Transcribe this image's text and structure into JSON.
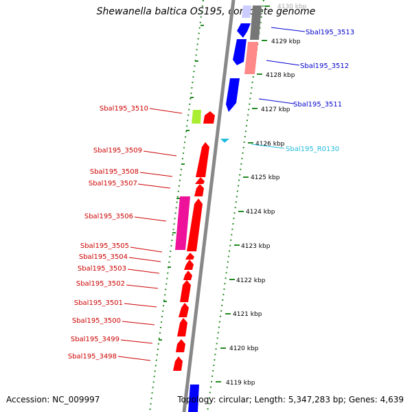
{
  "title": "Shewanella baltica OS195, complete genome",
  "accession": "Accession: NC_009997",
  "topology": "Topology: circular; Length: 5,347,283 bp; Genes: 4,639",
  "colors": {
    "forward_cds": "#ff0000",
    "reverse_cds": "#0000ff",
    "rna": "#22bbdd",
    "pink_gene": "#ee1199",
    "lime_gene": "#aaee33",
    "pseudo_light": "#ccccff",
    "pseudo_salmon": "#ff8888",
    "pseudo_grey": "#777777",
    "backbone": "#888888",
    "ticks": "#228822"
  },
  "kbp_ticks": [
    "4130 kbp",
    "4129 kbp",
    "4128 kbp",
    "4127 kbp",
    "4126 kbp",
    "4125 kbp",
    "4124 kbp",
    "4123 kbp",
    "4122 kbp",
    "4121 kbp",
    "4120 kbp",
    "4119 kbp"
  ],
  "labels": {
    "sbal3513": "Sbal195_3513",
    "sbal3512": "Sbal195_3512",
    "sbal3511": "Sbal195_3511",
    "sbalR0130": "Sbal195_R0130",
    "sbal3510": "Sbal195_3510",
    "sbal3509": "Sbal195_3509",
    "sbal3508": "Sbal195_3508",
    "sbal3507": "Sbal195_3507",
    "sbal3506": "Sbal195_3506",
    "sbal3505": "Sbal195_3505",
    "sbal3504": "Sbal195_3504",
    "sbal3503": "Sbal195_3503",
    "sbal3502": "Sbal195_3502",
    "sbal3501": "Sbal195_3501",
    "sbal3500": "Sbal195_3500",
    "sbal3499": "Sbal195_3499",
    "sbal3498": "Sbal195_3498"
  }
}
